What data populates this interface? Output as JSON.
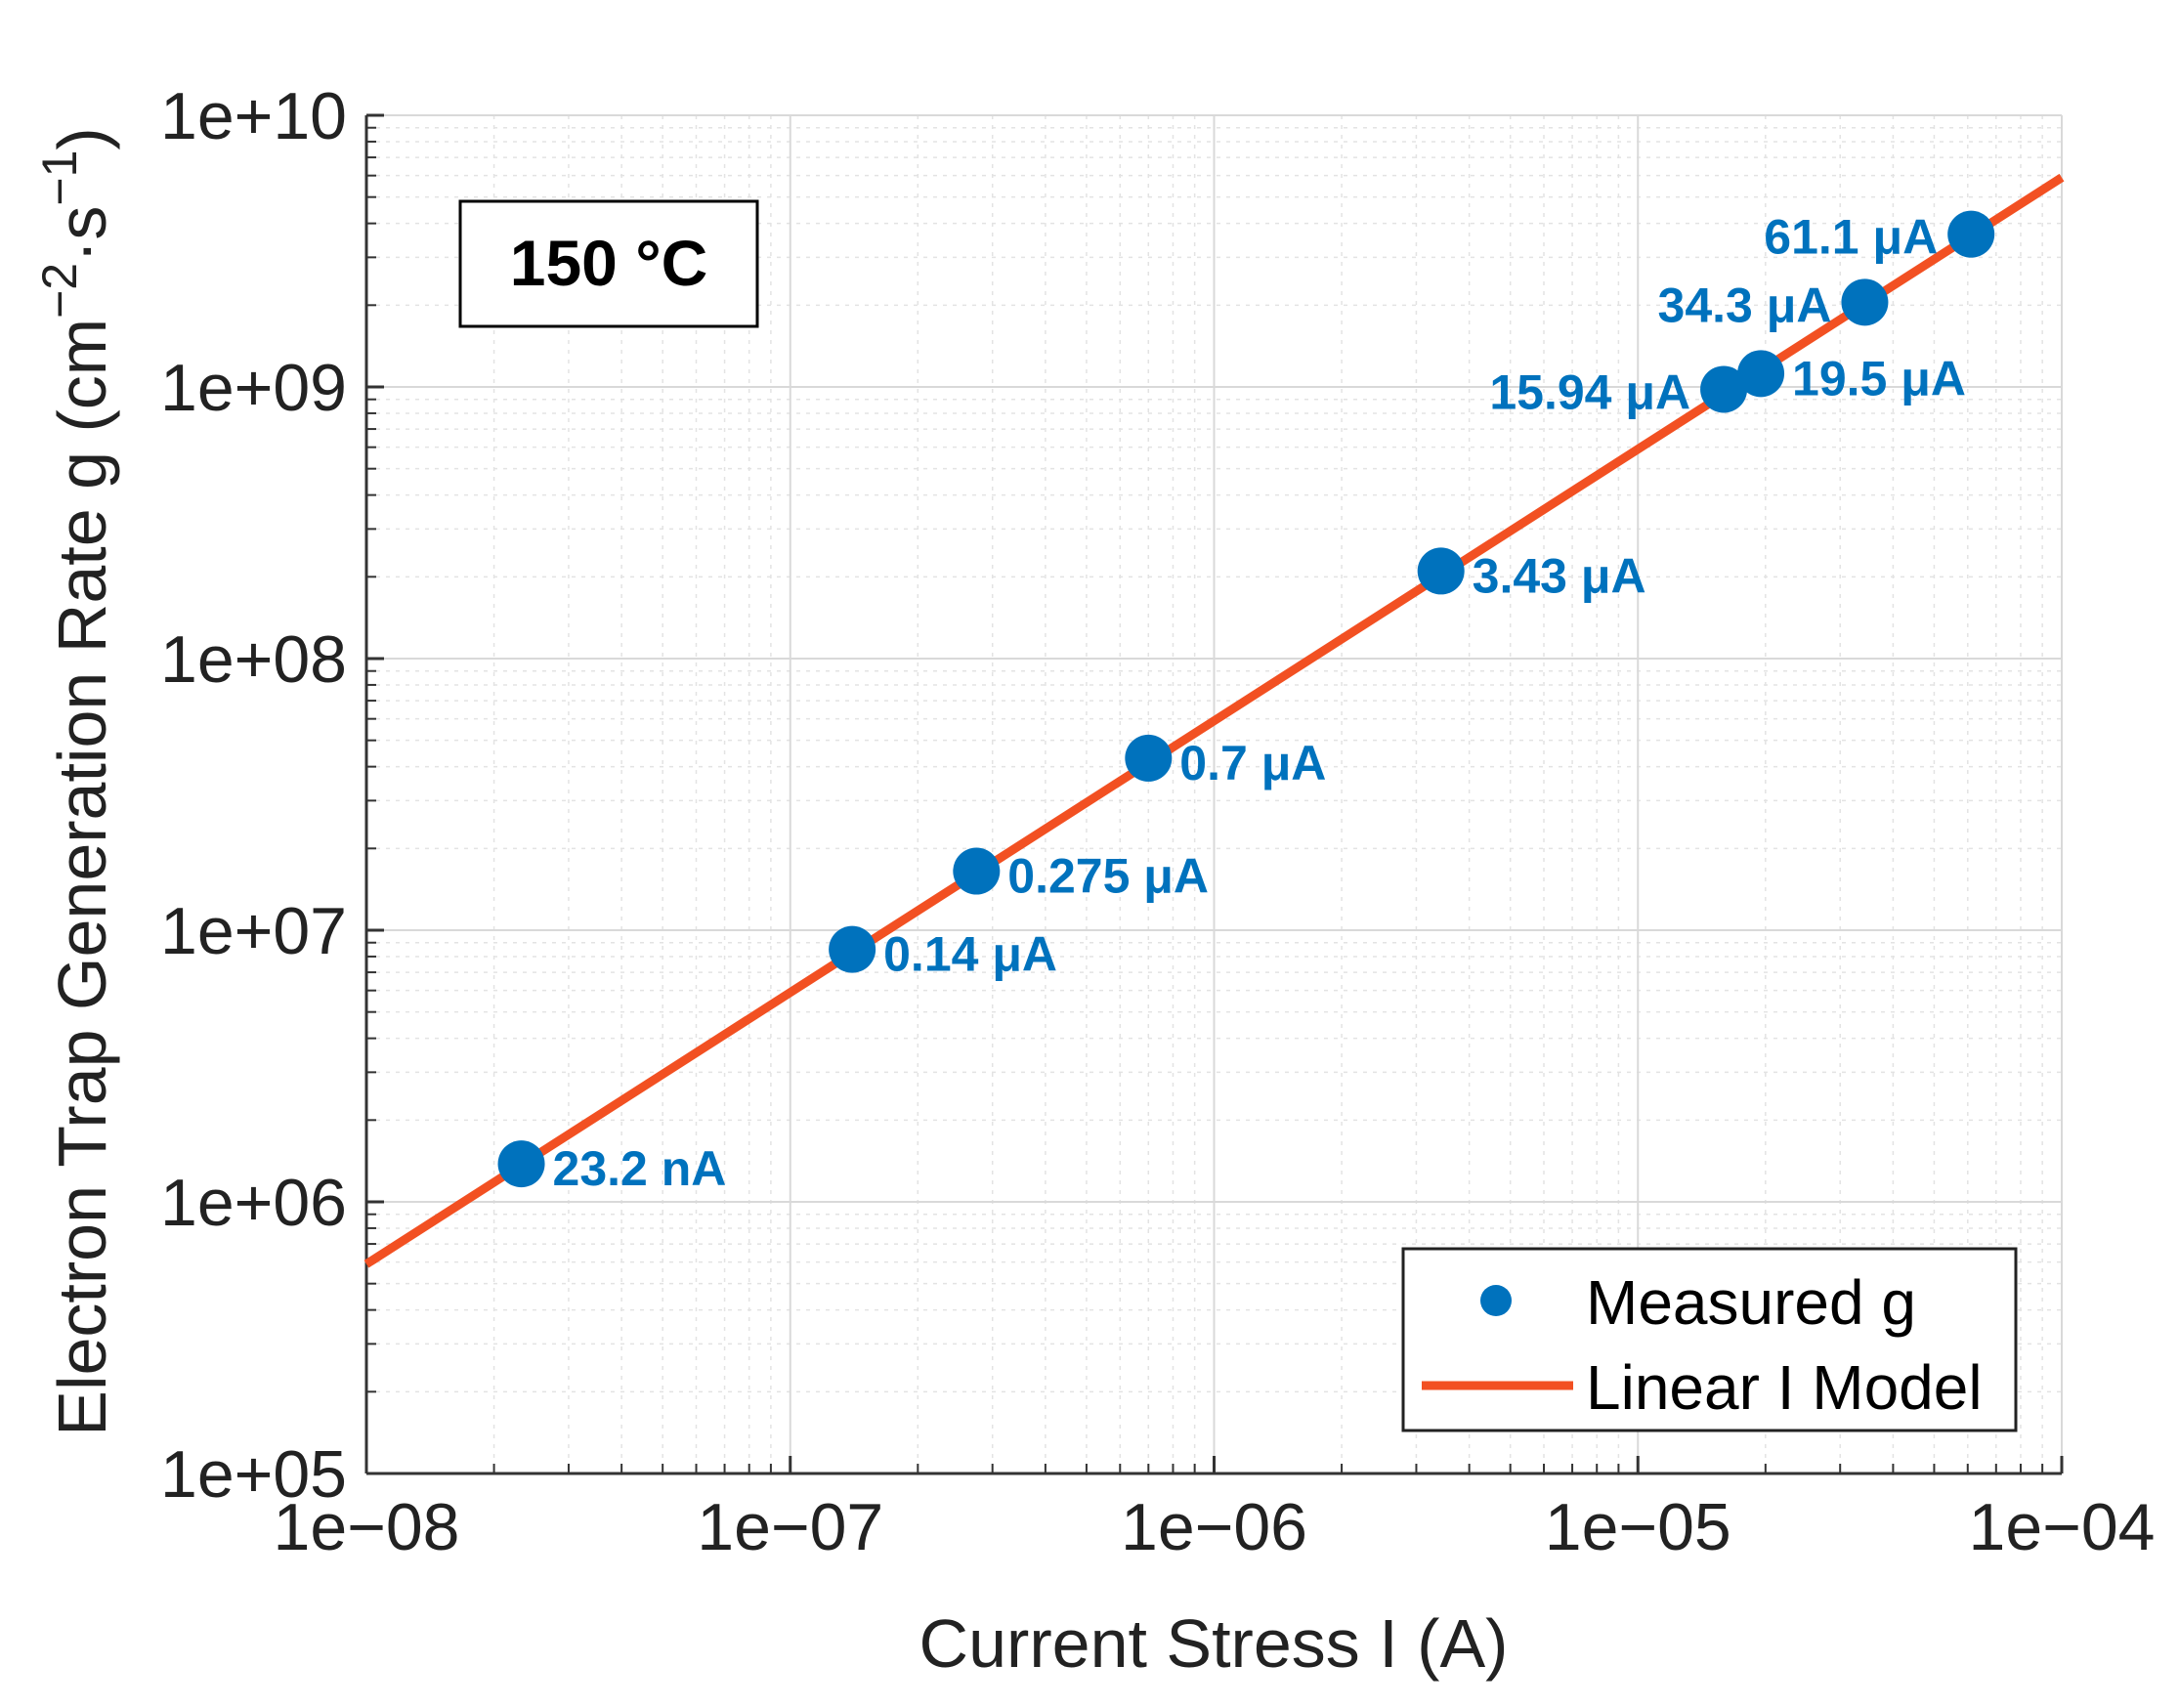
{
  "chart_data": {
    "type": "scatter",
    "scale": {
      "x": "log",
      "y": "log"
    },
    "xlim": [
      1e-08,
      0.0001
    ],
    "ylim": [
      100000.0,
      10000000000.0
    ],
    "grid": true,
    "xlabel": "Current Stress I (A)",
    "ylabel": "Electron Trap Generation Rate g (cm",
    "ylabel_tail": ")",
    "ylabel_exp1": "−2",
    "ylabel_sep": "·s",
    "ylabel_exp2": "−1",
    "x_ticks": [
      1e-08,
      1e-07,
      1e-06,
      1e-05,
      0.0001
    ],
    "x_tick_labels": [
      "1e−08",
      "1e−07",
      "1e−06",
      "1e−05",
      "1e−04"
    ],
    "y_ticks": [
      100000.0,
      1000000.0,
      10000000.0,
      100000000.0,
      1000000000.0,
      10000000000.0
    ],
    "y_tick_labels": [
      "1e+05",
      "1e+06",
      "1e+07",
      "1e+08",
      "1e+09",
      "1e+10"
    ],
    "annotation": "150 °C",
    "legend": {
      "position": "bottom-right",
      "entries": [
        "Measured g",
        "Linear I Model"
      ]
    },
    "series": [
      {
        "name": "Measured g",
        "type": "scatter",
        "color": "#0072BD",
        "points": [
          {
            "x": 2.32e-08,
            "y": 1380000.0,
            "label": "23.2 nA"
          },
          {
            "x": 1.4e-07,
            "y": 8500000.0,
            "label": "0.14 μA"
          },
          {
            "x": 2.75e-07,
            "y": 16500000.0,
            "label": "0.275 μA"
          },
          {
            "x": 7e-07,
            "y": 43000000.0,
            "label": "0.7 μA"
          },
          {
            "x": 3.43e-06,
            "y": 210000000.0,
            "label": "3.43 μA"
          },
          {
            "x": 1.594e-05,
            "y": 980000000.0,
            "label": "15.94 μA"
          },
          {
            "x": 1.95e-05,
            "y": 1120000000.0,
            "label": "19.5 μA"
          },
          {
            "x": 3.43e-05,
            "y": 2050000000.0,
            "label": "34.3 μA"
          },
          {
            "x": 6.11e-05,
            "y": 3650000000.0,
            "label": "61.1 μA"
          }
        ]
      },
      {
        "name": "Linear I Model",
        "type": "line",
        "color": "#F25022",
        "points": [
          {
            "x": 1e-08,
            "y": 590000.0
          },
          {
            "x": 0.0001,
            "y": 5900000000.0
          }
        ]
      }
    ]
  }
}
